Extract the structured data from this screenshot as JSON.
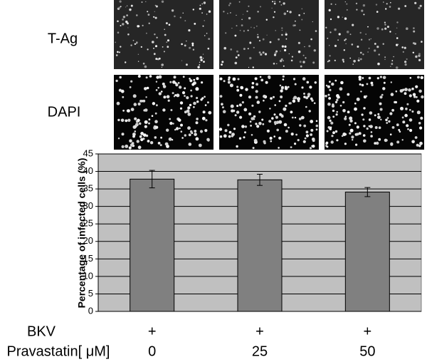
{
  "panels": {
    "rows": [
      "T-Ag",
      "DAPI"
    ]
  },
  "chart_data": {
    "type": "bar",
    "y_label": "Percentage of infected cells (%)",
    "categories": [
      "0",
      "25",
      "50"
    ],
    "x_label": "Pravastatin[ μM]",
    "row_label": "BKV",
    "row_values": [
      "+",
      "+",
      "+"
    ],
    "values": [
      37.8,
      37.6,
      34.1
    ],
    "errors": [
      2.5,
      1.6,
      1.3
    ],
    "color": "#808080",
    "plot_background": "#c0c0c0",
    "ylim": [
      0,
      45
    ],
    "yticks": [
      0,
      5,
      10,
      15,
      20,
      25,
      30,
      35,
      40,
      45
    ],
    "grid": true
  }
}
